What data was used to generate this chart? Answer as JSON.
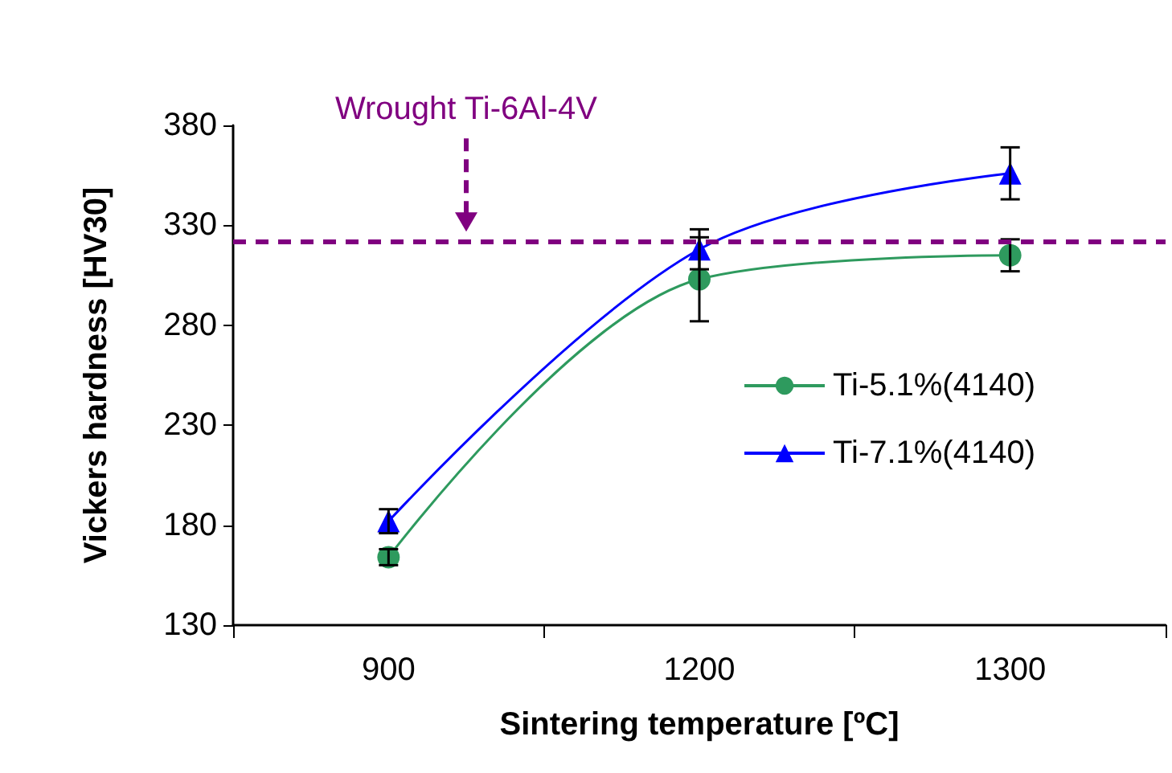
{
  "chart_data": {
    "type": "line",
    "xlabel": "Sintering temperature [ºC]",
    "ylabel": "Vickers hardness [HV30]",
    "categories": [
      "900",
      "1200",
      "1300"
    ],
    "series": [
      {
        "name": "Ti-5.1%(4140)",
        "color": "#2e9a5e",
        "marker": "circle",
        "values": [
          164,
          303,
          315
        ],
        "errors": [
          4,
          21,
          8
        ]
      },
      {
        "name": "Ti-7.1%(4140)",
        "color": "#0000ff",
        "marker": "triangle",
        "values": [
          182,
          318,
          356
        ],
        "errors": [
          6,
          10,
          13
        ]
      }
    ],
    "ylim": [
      130,
      380
    ],
    "yticks": [
      130,
      180,
      230,
      280,
      330,
      380
    ],
    "grid": false,
    "legend": "right",
    "ref_lines": [
      {
        "axis": "y",
        "value": 322,
        "label": "Wrought Ti-6Al-4V",
        "color": "#800080",
        "line_style": "dashed"
      }
    ]
  }
}
